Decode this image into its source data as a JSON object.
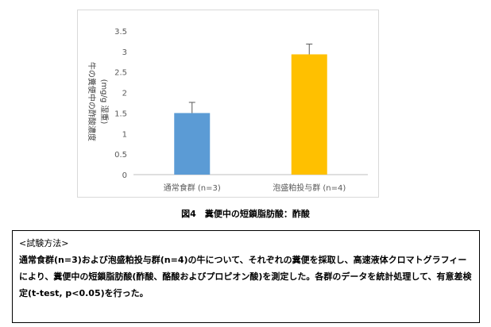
{
  "chart_data": {
    "type": "bar",
    "categories": [
      "通常食群 (n=3)",
      "泡盛粕投与群 (n=4)"
    ],
    "values": [
      1.5,
      2.93
    ],
    "error_bars": [
      0.26,
      0.25
    ],
    "colors": [
      "#5b9bd5",
      "#ffc000"
    ],
    "ylabel_line1": "牛の糞便中の酢酸濃度",
    "ylabel_line2": "(mg/g 湿重)",
    "ylim": [
      0,
      3.5
    ],
    "yticks": [
      "0",
      "0.5",
      "1",
      "1.5",
      "2",
      "2.5",
      "3",
      "3.5"
    ],
    "grid": false
  },
  "caption": "図4　糞便中の短鎖脂肪酸：酢酸",
  "method": {
    "heading": "<試験方法>",
    "body": "通常食群(n=3)および泡盛粕投与群(n=4)の牛について、それぞれの糞便を採取し、高速液体クロマトグラフィーにより、糞便中の短鎖脂肪酸(酢酸、酪酸およびプロピオン酸)を測定した。各群のデータを統計処理して、有意差検定(t-test, p<0.05)を行った。"
  }
}
